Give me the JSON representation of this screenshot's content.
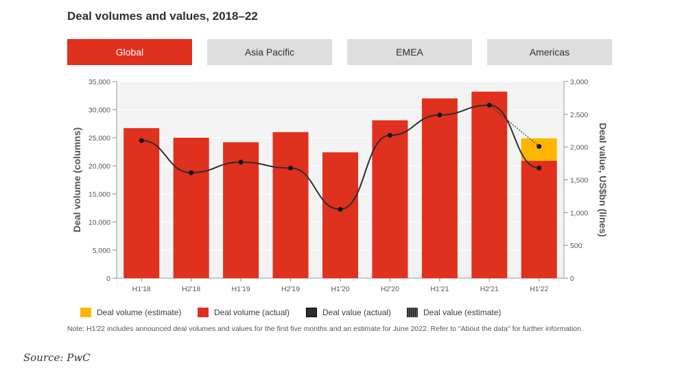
{
  "header": {
    "title": "Deal volumes and values, 2018–22"
  },
  "tabs": [
    {
      "label": "Global",
      "active": true
    },
    {
      "label": "Asia Pacific",
      "active": false
    },
    {
      "label": "EMEA",
      "active": false
    },
    {
      "label": "Americas",
      "active": false
    }
  ],
  "colors": {
    "bar_actual": "#e0301e",
    "bar_estimate": "#ffb600",
    "line": "#2d2d2d",
    "plot_bg": "#f3f3f3",
    "tab_active": "#e0301e",
    "tab_inactive": "#dedede"
  },
  "chart_data": {
    "type": "bar",
    "categories": [
      "H1'18",
      "H2'18",
      "H1'19",
      "H2'19",
      "H1'20",
      "H2'20",
      "H1'21",
      "H2'21",
      "H1'22"
    ],
    "series": [
      {
        "name": "Deal volume (actual)",
        "type": "bar",
        "axis": "left",
        "values": [
          26700,
          25000,
          24200,
          26000,
          22400,
          28100,
          32000,
          33200,
          20900
        ]
      },
      {
        "name": "Deal volume (estimate)",
        "type": "bar",
        "axis": "left",
        "stacked": true,
        "values": [
          null,
          null,
          null,
          null,
          null,
          null,
          null,
          null,
          4000
        ]
      },
      {
        "name": "Deal value (actual)",
        "type": "line",
        "axis": "right",
        "values": [
          2100,
          1610,
          1770,
          1680,
          1050,
          2180,
          2490,
          2640,
          1680
        ]
      },
      {
        "name": "Deal value (estimate)",
        "type": "line",
        "axis": "right",
        "dashed": true,
        "values": [
          null,
          null,
          null,
          null,
          null,
          null,
          null,
          2640,
          2010
        ]
      }
    ],
    "ylabel": "Deal volume (columns)",
    "y2label": "Deal value, US$bn (lines)",
    "ylim": [
      0,
      35000
    ],
    "y2lim": [
      0,
      3000
    ],
    "yticks": [
      "0",
      "5,000",
      "10,000",
      "15,000",
      "20,000",
      "25,000",
      "30,000",
      "35,000"
    ],
    "y2ticks": [
      "0",
      "500",
      "1,000",
      "1,500",
      "2,000",
      "2,500",
      "3,000"
    ],
    "grid": true,
    "legend_position": "bottom"
  },
  "legend": [
    {
      "label": "Deal volume (estimate)",
      "color": "#ffb600",
      "style": "solid"
    },
    {
      "label": "Deal volume (actual)",
      "color": "#e0301e",
      "style": "solid"
    },
    {
      "label": "Deal value (actual)",
      "color": "#2d2d2d",
      "style": "solid"
    },
    {
      "label": "Deal value (estimate)",
      "color": "#2d2d2d",
      "style": "dotted"
    }
  ],
  "note": "Note: H1'22 includes announced deal volumes and values for the first five months and an estimate for June 2022. Refer to \"About the data\" for further information.",
  "source": "Source: PwC"
}
